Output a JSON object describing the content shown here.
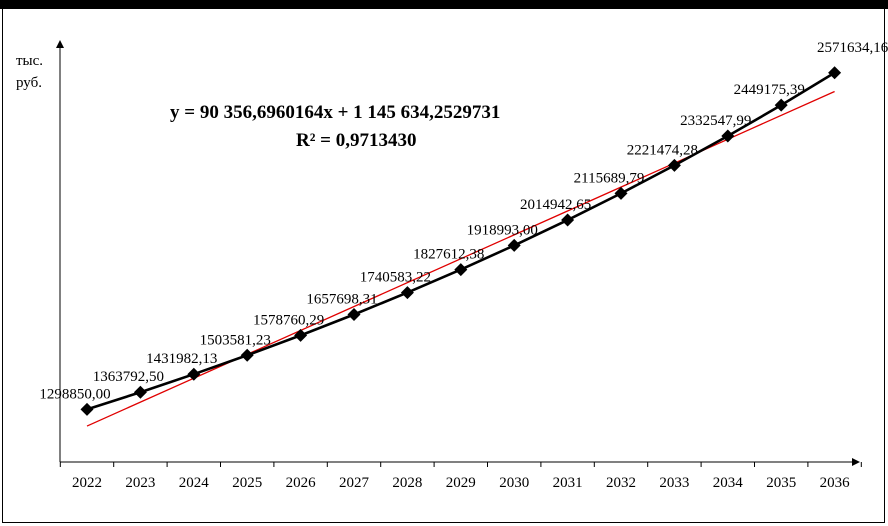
{
  "chart_data": {
    "type": "line",
    "ylabel": "тыс. руб.",
    "x": [
      "2022",
      "2023",
      "2024",
      "2025",
      "2026",
      "2027",
      "2028",
      "2029",
      "2030",
      "2031",
      "2032",
      "2033",
      "2034",
      "2035",
      "2036"
    ],
    "series": [
      {
        "values": [
          1298850.0,
          1363792.5,
          1431982.13,
          1503581.23,
          1578760.29,
          1657698.31,
          1740583.22,
          1827612.38,
          1918993.0,
          2014942.65,
          2115689.79,
          2221474.28,
          2332547.99,
          2449175.39,
          2571634.16
        ],
        "labels": [
          "1298850,00",
          "1363792,50",
          "1431982,13",
          "1503581,23",
          "1578760,29",
          "1657698,31",
          "1740583,22",
          "1827612,38",
          "1918993,00",
          "2014942,65",
          "2115689,79",
          "2221474,28",
          "2332547,99",
          "2449175,39",
          "2571634,16"
        ],
        "color": "#000000",
        "marker": "diamond"
      }
    ],
    "trendline": {
      "type": "linear",
      "color": "#e00000",
      "equation": "y = 90 356,6960164x + 1 145 634,2529731",
      "r_squared": "R² = 0,9713430"
    },
    "grid": false,
    "legend": "none"
  }
}
